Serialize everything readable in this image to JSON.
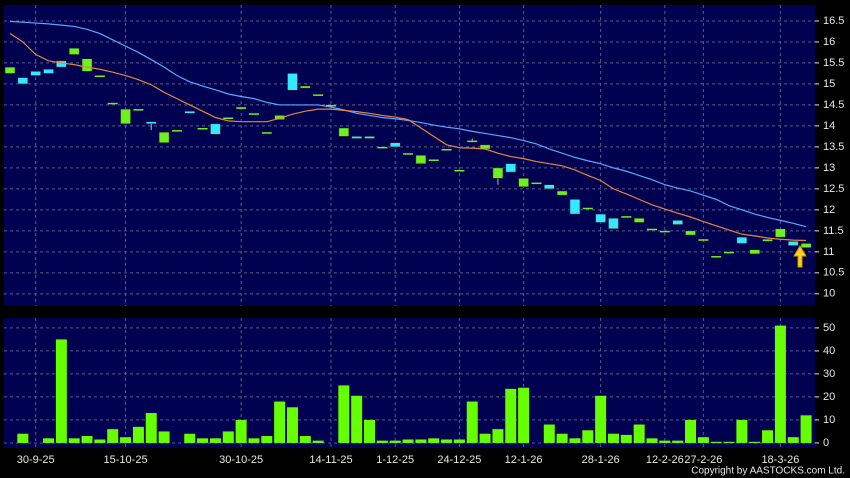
{
  "chart_data": [
    {
      "type": "candlestick",
      "categories": [
        null,
        null,
        "30-9-25",
        null,
        null,
        null,
        null,
        null,
        null,
        "15-10-25",
        null,
        null,
        null,
        null,
        null,
        null,
        null,
        null,
        "30-10-25",
        null,
        null,
        null,
        null,
        null,
        null,
        "14-11-25",
        null,
        null,
        null,
        null,
        "1-12-25",
        null,
        null,
        null,
        null,
        "24-12-25",
        null,
        null,
        null,
        null,
        "12-1-26",
        null,
        null,
        null,
        null,
        null,
        "28-1-26",
        null,
        null,
        null,
        null,
        "12-2-26",
        null,
        null,
        "27-2-26",
        null,
        null,
        null,
        null,
        null,
        "18-3-26",
        null,
        null
      ],
      "open": [
        15.4,
        15.0,
        15.2,
        15.25,
        15.4,
        15.85,
        15.6,
        15.2,
        14.55,
        14.4,
        14.4,
        14.05,
        13.85,
        13.9,
        14.3,
        13.95,
        13.8,
        14.2,
        14.45,
        14.3,
        13.85,
        14.25,
        14.85,
        14.95,
        14.75,
        14.5,
        13.95,
        13.7,
        13.7,
        13.5,
        13.5,
        13.35,
        13.3,
        13.2,
        13.45,
        12.95,
        13.65,
        13.55,
        13.0,
        12.9,
        12.75,
        12.65,
        12.5,
        12.45,
        11.9,
        12.05,
        11.7,
        11.55,
        11.85,
        11.8,
        11.55,
        11.5,
        11.65,
        11.5,
        11.3,
        10.9,
        11.0,
        11.2,
        11.05,
        11.3,
        11.55,
        11.15,
        11.2
      ],
      "close": [
        15.25,
        15.15,
        15.3,
        15.35,
        15.55,
        15.7,
        15.3,
        15.2,
        14.55,
        14.05,
        14.4,
        14.1,
        13.6,
        13.9,
        14.35,
        13.95,
        14.05,
        14.2,
        14.4,
        14.3,
        13.85,
        14.15,
        15.25,
        14.9,
        14.75,
        14.5,
        13.75,
        13.75,
        13.75,
        13.5,
        13.6,
        13.35,
        13.1,
        13.2,
        13.45,
        12.95,
        13.65,
        13.45,
        12.75,
        13.1,
        12.55,
        12.65,
        12.6,
        12.35,
        12.25,
        12.05,
        11.9,
        11.8,
        11.85,
        11.7,
        11.55,
        11.5,
        11.75,
        11.4,
        11.3,
        10.9,
        11.0,
        11.35,
        10.95,
        11.25,
        11.35,
        11.25,
        11.1
      ],
      "high": [
        15.4,
        15.15,
        15.3,
        15.35,
        15.55,
        15.85,
        15.6,
        15.2,
        14.55,
        14.4,
        14.4,
        14.1,
        13.85,
        13.9,
        14.35,
        13.95,
        14.05,
        14.2,
        14.45,
        14.3,
        13.85,
        14.25,
        15.25,
        14.95,
        14.75,
        14.5,
        13.95,
        13.75,
        13.75,
        13.5,
        13.6,
        13.35,
        13.3,
        13.2,
        13.45,
        12.95,
        13.7,
        13.55,
        13.0,
        13.1,
        12.75,
        12.65,
        12.6,
        12.45,
        12.25,
        12.05,
        11.9,
        11.8,
        11.85,
        11.8,
        11.55,
        11.5,
        11.75,
        11.5,
        11.3,
        10.9,
        11.0,
        11.35,
        11.05,
        11.3,
        11.55,
        11.25,
        11.2
      ],
      "low": [
        15.25,
        15.0,
        15.2,
        15.25,
        15.4,
        15.7,
        15.3,
        15.2,
        14.55,
        14.05,
        14.4,
        13.9,
        13.6,
        13.9,
        14.3,
        13.95,
        13.8,
        14.2,
        14.4,
        14.3,
        13.85,
        14.15,
        14.85,
        14.9,
        14.75,
        14.5,
        13.75,
        13.7,
        13.7,
        13.5,
        13.5,
        13.35,
        13.1,
        13.2,
        13.45,
        12.95,
        13.65,
        13.45,
        12.6,
        12.9,
        12.55,
        12.65,
        12.5,
        12.35,
        11.9,
        12.05,
        11.7,
        11.55,
        11.85,
        11.7,
        11.55,
        11.5,
        11.65,
        11.4,
        11.3,
        10.9,
        11.0,
        11.2,
        10.95,
        11.25,
        11.35,
        11.15,
        11.1
      ],
      "up_color": "#33e8ff",
      "down_color": "#6cf020",
      "series": [
        {
          "color": "#5aa8ff",
          "values": [
            16.49,
            16.47,
            16.45,
            16.43,
            16.4,
            16.37,
            16.3,
            16.2,
            16.05,
            15.9,
            15.75,
            15.58,
            15.4,
            15.2,
            15.05,
            14.95,
            14.86,
            14.76,
            14.7,
            14.65,
            14.56,
            14.5,
            14.5,
            14.5,
            14.5,
            14.45,
            14.38,
            14.3,
            14.25,
            14.2,
            14.17,
            14.13,
            14.08,
            14.02,
            13.97,
            13.93,
            13.87,
            13.82,
            13.77,
            13.72,
            13.65,
            13.57,
            13.45,
            13.35,
            13.25,
            13.17,
            13.1,
            13.0,
            12.92,
            12.82,
            12.72,
            12.6,
            12.52,
            12.45,
            12.35,
            12.25,
            12.1,
            12.0,
            11.9,
            11.82,
            11.75,
            11.68,
            11.6
          ]
        },
        {
          "color": "#e8843a",
          "values": [
            16.2,
            16.0,
            15.7,
            15.55,
            15.5,
            15.46,
            15.4,
            15.35,
            15.28,
            15.2,
            15.1,
            14.98,
            14.8,
            14.65,
            14.5,
            14.35,
            14.2,
            14.12,
            14.1,
            14.1,
            14.1,
            14.18,
            14.28,
            14.35,
            14.4,
            14.4,
            14.37,
            14.34,
            14.3,
            14.25,
            14.21,
            14.15,
            13.95,
            13.75,
            13.55,
            13.48,
            13.47,
            13.45,
            13.35,
            13.27,
            13.22,
            13.15,
            13.1,
            13.05,
            12.95,
            12.82,
            12.7,
            12.5,
            12.38,
            12.25,
            12.12,
            12.02,
            11.92,
            11.83,
            11.72,
            11.62,
            11.52,
            11.42,
            11.38,
            11.33,
            11.3,
            11.28,
            11.27
          ]
        }
      ],
      "ylim": [
        9.71,
        16.88
      ],
      "yticks": [
        10,
        10.5,
        11,
        11.5,
        12,
        12.5,
        13,
        13.5,
        14,
        14.5,
        15,
        15.5,
        16,
        16.5
      ],
      "grid": true
    },
    {
      "type": "bar",
      "values": [
        0,
        4,
        0,
        2,
        45,
        2,
        3,
        1.5,
        6,
        2.5,
        7,
        13,
        5,
        0,
        4,
        2,
        2,
        5,
        10,
        2,
        3,
        18,
        15.5,
        3,
        1,
        0,
        25,
        20.5,
        10,
        1,
        1,
        1.5,
        1.5,
        2,
        1.5,
        1.5,
        18,
        4,
        6,
        23.5,
        24,
        0,
        8,
        4,
        2,
        5.5,
        20.5,
        4,
        3.5,
        8,
        2,
        1,
        1,
        10,
        2.5,
        0.5,
        0.5,
        10,
        0.5,
        5.5,
        51,
        2.5,
        12
      ],
      "color": "#66ff00",
      "ylim": [
        -2.2,
        54.3
      ],
      "yticks": [
        0,
        10,
        20,
        30,
        40,
        50
      ],
      "grid": true
    }
  ],
  "copyright": "Copyright by AASTOCKS.com Ltd."
}
